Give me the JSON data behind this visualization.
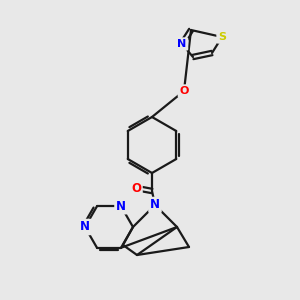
{
  "background_color": "#e8e8e8",
  "bond_color": "#1a1a1a",
  "atom_colors": {
    "N": "#0000FF",
    "O": "#FF0000",
    "S": "#cccc00"
  },
  "figsize": [
    3.0,
    3.0
  ],
  "dpi": 100
}
